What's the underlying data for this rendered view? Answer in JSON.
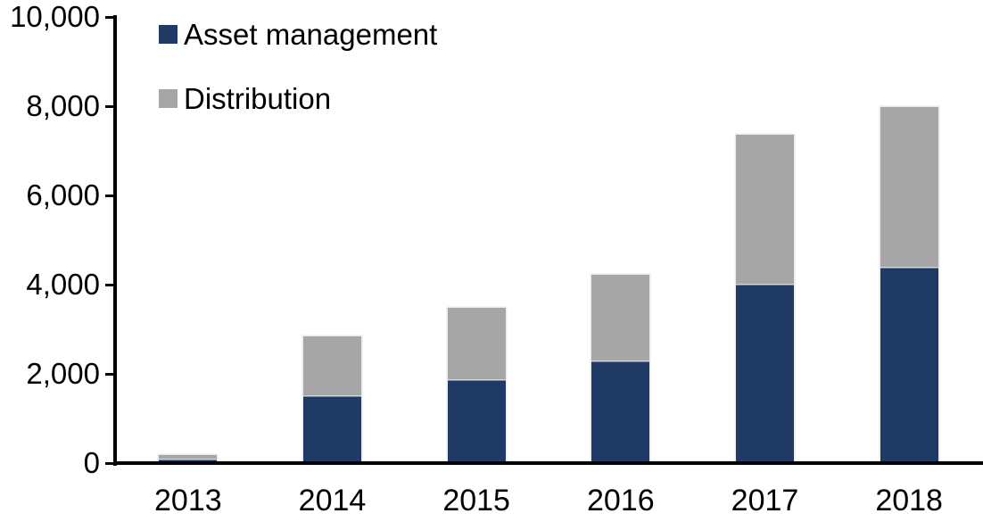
{
  "chart_data": {
    "type": "bar",
    "stacked": true,
    "title": "",
    "xlabel": "",
    "ylabel": "",
    "grid": false,
    "legend_position": "top-left-inside",
    "background_color": "#FFFFFF",
    "axis_color": "#000000",
    "text_color": "#000000",
    "categories": [
      "2013",
      "2014",
      "2015",
      "2016",
      "2017",
      "2018"
    ],
    "series": [
      {
        "name": "Asset management",
        "color": "#203A66",
        "values": [
          100,
          1520,
          1890,
          2300,
          4030,
          4400
        ]
      },
      {
        "name": "Distribution",
        "color": "#A6A6A6",
        "values": [
          90,
          1330,
          1590,
          1930,
          3340,
          3580
        ]
      }
    ],
    "ylim": [
      0,
      10000
    ],
    "ytick_step": 2000,
    "ytick_labels": [
      "0",
      "2,000",
      "4,000",
      "6,000",
      "8,000",
      "10,000"
    ]
  }
}
